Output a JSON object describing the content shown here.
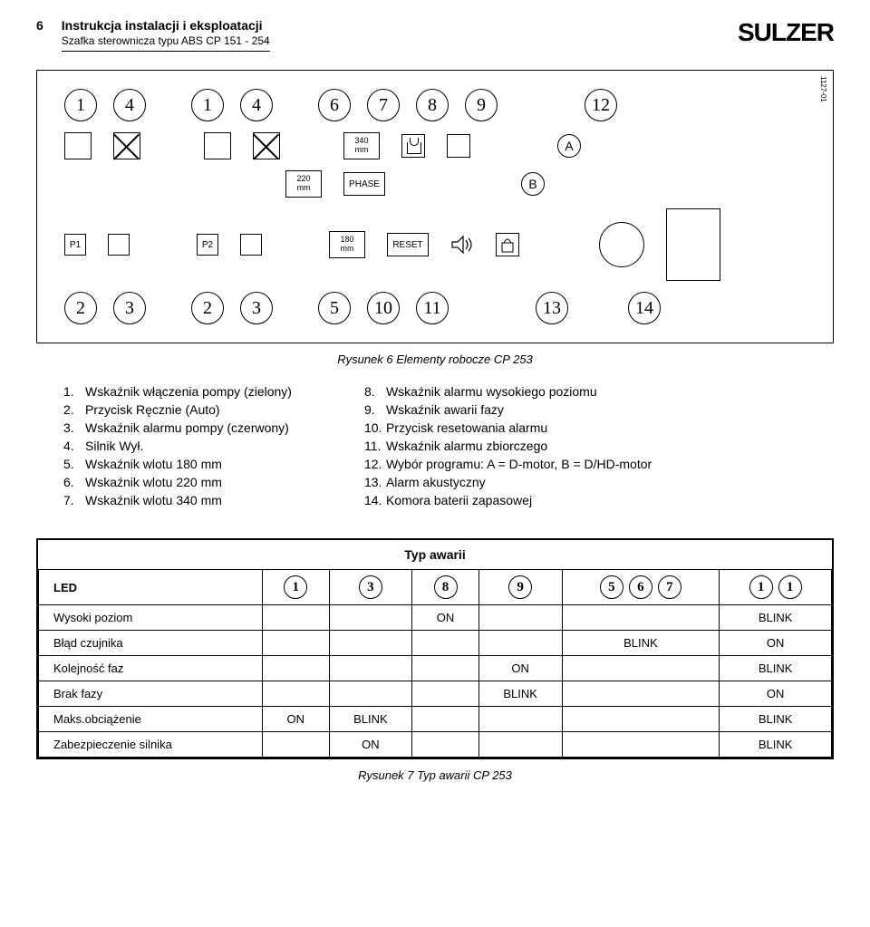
{
  "header": {
    "pageNumber": "6",
    "title1": "Instrukcja instalacji i eksploatacji",
    "title2": "Szafka sterownicza typu ABS CP 151 - 254",
    "brand": "SULZER"
  },
  "diagram": {
    "sideLabel": "1127-01",
    "topNums": [
      "1",
      "4",
      "1",
      "4",
      "6",
      "7",
      "8",
      "9",
      "12"
    ],
    "mm340": "340",
    "mm220": "220",
    "mm180": "180",
    "mmUnit": "mm",
    "phase": "PHASE",
    "reset": "RESET",
    "A": "A",
    "B": "B",
    "P1": "P1",
    "P2": "P2",
    "bottomNums": [
      "2",
      "3",
      "2",
      "3",
      "5",
      "10",
      "11",
      "13",
      "14"
    ]
  },
  "caption1": "Rysunek 6 Elementy robocze CP 253",
  "legendLeft": [
    {
      "n": "1.",
      "t": "Wskaźnik włączenia pompy (zielony)"
    },
    {
      "n": "2.",
      "t": "Przycisk Ręcznie (Auto)"
    },
    {
      "n": "3.",
      "t": "Wskaźnik alarmu pompy (czerwony)"
    },
    {
      "n": "4.",
      "t": "Silnik Wył."
    },
    {
      "n": "5.",
      "t": "Wskaźnik wlotu 180 mm"
    },
    {
      "n": "6.",
      "t": "Wskaźnik wlotu 220 mm"
    },
    {
      "n": "7.",
      "t": "Wskaźnik wlotu 340 mm"
    }
  ],
  "legendRight": [
    {
      "n": "8.",
      "t": "Wskaźnik alarmu wysokiego poziomu"
    },
    {
      "n": "9.",
      "t": "Wskaźnik awarii fazy"
    },
    {
      "n": "10.",
      "t": "Przycisk resetowania alarmu"
    },
    {
      "n": "11.",
      "t": "Wskaźnik alarmu zbiorczego"
    },
    {
      "n": "12.",
      "t": "Wybór programu: A = D-motor, B = D/HD-motor"
    },
    {
      "n": "13.",
      "t": "Alarm akustyczny"
    },
    {
      "n": "14.",
      "t": "Komora baterii zapasowej"
    }
  ],
  "table": {
    "title": "Typ awarii",
    "ledLabel": "LED",
    "cols": [
      "1",
      "3",
      "8",
      "9",
      "567",
      "11"
    ],
    "rows": [
      {
        "label": "Wysoki poziom",
        "cells": [
          "",
          "",
          "ON",
          "",
          "",
          "BLINK"
        ]
      },
      {
        "label": "Błąd czujnika",
        "cells": [
          "",
          "",
          "",
          "",
          "BLINK",
          "ON"
        ]
      },
      {
        "label": "Kolejność faz",
        "cells": [
          "",
          "",
          "",
          "ON",
          "",
          "BLINK"
        ]
      },
      {
        "label": "Brak fazy",
        "cells": [
          "",
          "",
          "",
          "BLINK",
          "",
          "ON"
        ]
      },
      {
        "label": "Maks.obciążenie",
        "cells": [
          "ON",
          "BLINK",
          "",
          "",
          "",
          "BLINK"
        ]
      },
      {
        "label": "Zabezpieczenie silnika",
        "cells": [
          "",
          "ON",
          "",
          "",
          "",
          "BLINK"
        ]
      }
    ]
  },
  "caption2": "Rysunek 7 Typ awarii CP 253"
}
